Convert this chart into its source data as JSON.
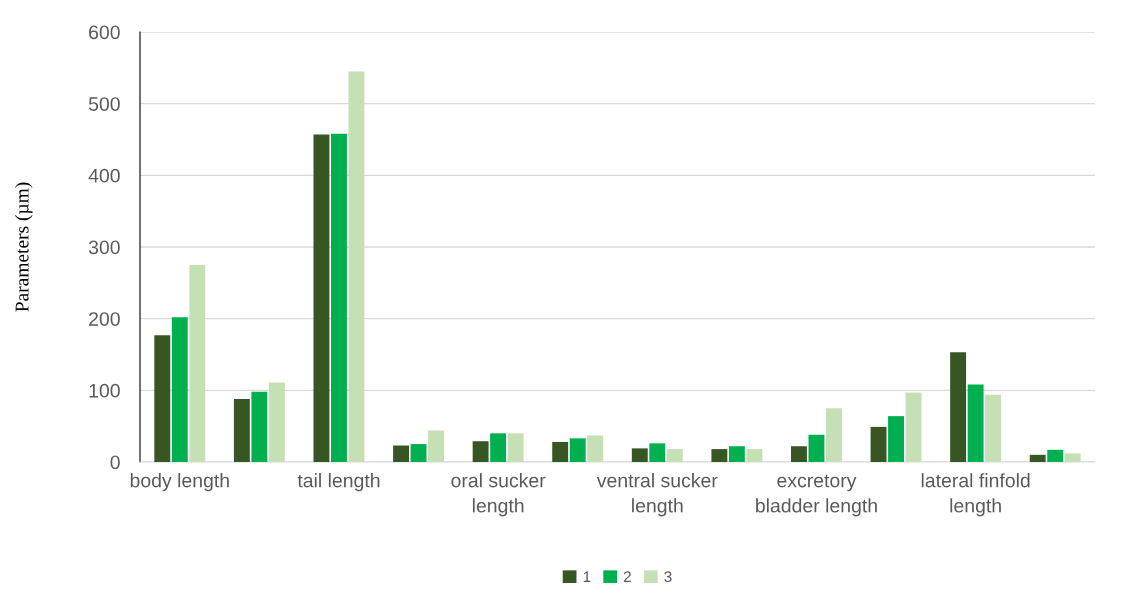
{
  "chart_data": {
    "type": "bar",
    "ylabel": "Parameters (µm)",
    "categories": [
      "body length",
      null,
      "tail length",
      null,
      "oral sucker\nlength",
      null,
      "ventral sucker\nlength",
      null,
      "excretory\nbladder length",
      null,
      "lateral finfold\nlength",
      null
    ],
    "series": [
      {
        "name": "1",
        "color": "#375623",
        "values": [
          177,
          88,
          457,
          23,
          29,
          28,
          19,
          18,
          22,
          49,
          153,
          10
        ]
      },
      {
        "name": "2",
        "color": "#00b050",
        "values": [
          202,
          98,
          458,
          25,
          40,
          33,
          26,
          22,
          38,
          64,
          108,
          17
        ]
      },
      {
        "name": "3",
        "color": "#c5e0b4",
        "values": [
          275,
          111,
          545,
          44,
          40,
          37,
          18,
          18,
          75,
          97,
          94,
          12
        ]
      }
    ],
    "ylim": [
      0,
      600
    ],
    "yticks": [
      0,
      100,
      200,
      300,
      400,
      500,
      600
    ],
    "grid": "y",
    "legend": "bottom"
  }
}
